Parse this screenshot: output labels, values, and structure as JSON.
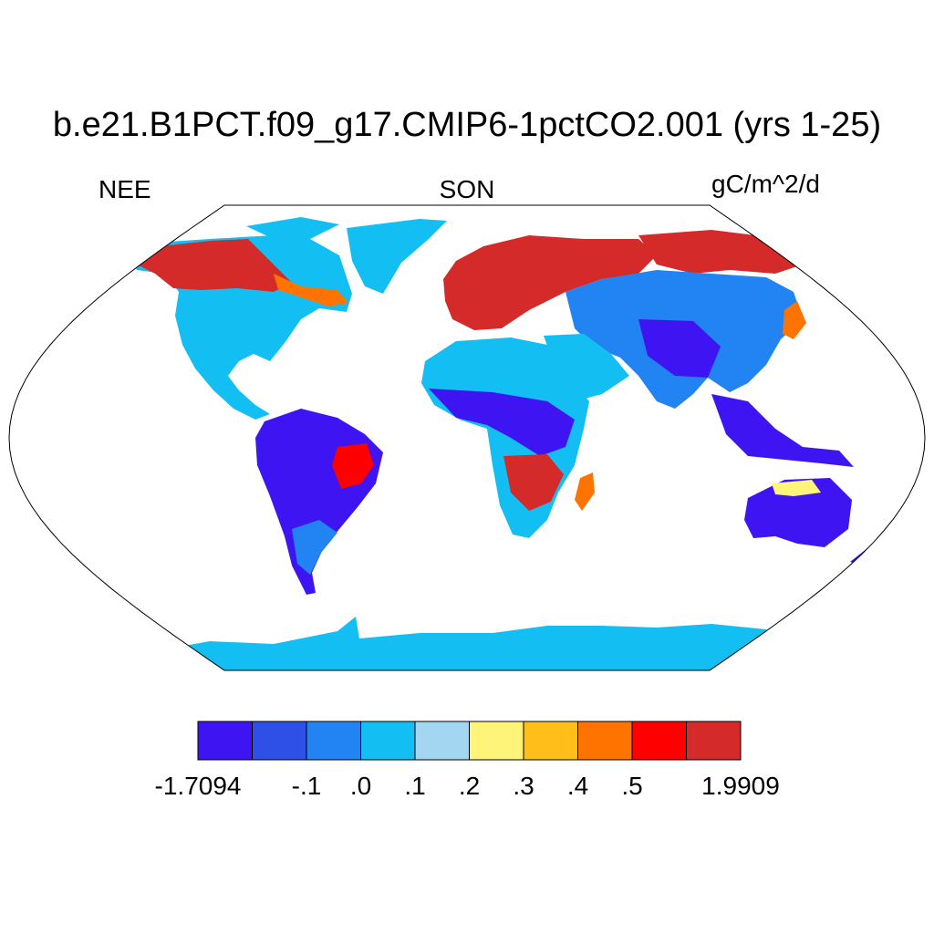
{
  "title": "b.e21.B1PCT.f09_g17.CMIP6-1pctCO2.001 (yrs 1-25)",
  "labels": {
    "variable": "NEE",
    "season": "SON",
    "units": "gC/m^2/d"
  },
  "colorbar": {
    "colors": [
      "#3f14f2",
      "#2e50e6",
      "#2283f2",
      "#13bff2",
      "#a3d6f0",
      "#fef47a",
      "#ffbe1a",
      "#ff7300",
      "#ff0000",
      "#d42a2a"
    ],
    "tick_labels": [
      "-1.7094",
      "-.1",
      ".0",
      ".1",
      ".2",
      ".3",
      ".4",
      ".5",
      "1.9909"
    ]
  },
  "map": {
    "projection": "Robinson",
    "ocean_color": "#ffffff",
    "coastline_color": "#000000"
  }
}
